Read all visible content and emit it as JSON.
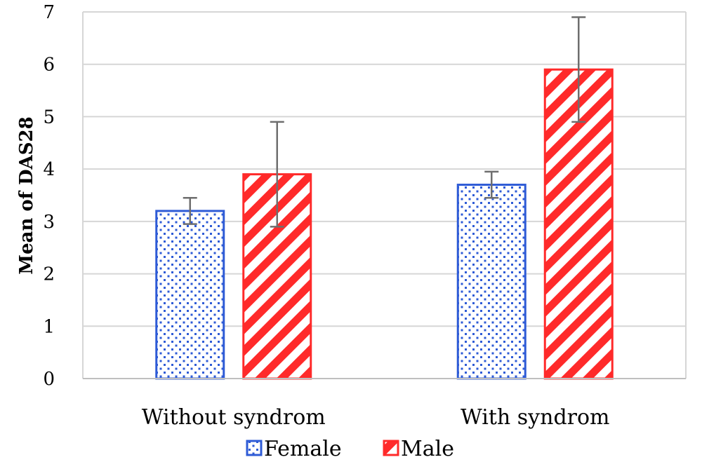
{
  "chart_data": {
    "type": "bar",
    "title": "",
    "xlabel": "",
    "ylabel": "Mean of DAS28",
    "ylim": [
      0,
      7
    ],
    "yticks": [
      0,
      1,
      2,
      3,
      4,
      5,
      6,
      7
    ],
    "grid": true,
    "legend_position": "bottom",
    "categories": [
      "Without syndrom",
      "With syndrom"
    ],
    "series": [
      {
        "name": "Female",
        "values": [
          3.2,
          3.7
        ],
        "error": [
          0.25,
          0.25
        ],
        "color": "#2e5bd6",
        "pattern": "dots"
      },
      {
        "name": "Male",
        "values": [
          3.9,
          5.9
        ],
        "error": [
          1.0,
          1.0
        ],
        "color": "#ff2a2a",
        "pattern": "diagonal-stripes"
      }
    ]
  }
}
